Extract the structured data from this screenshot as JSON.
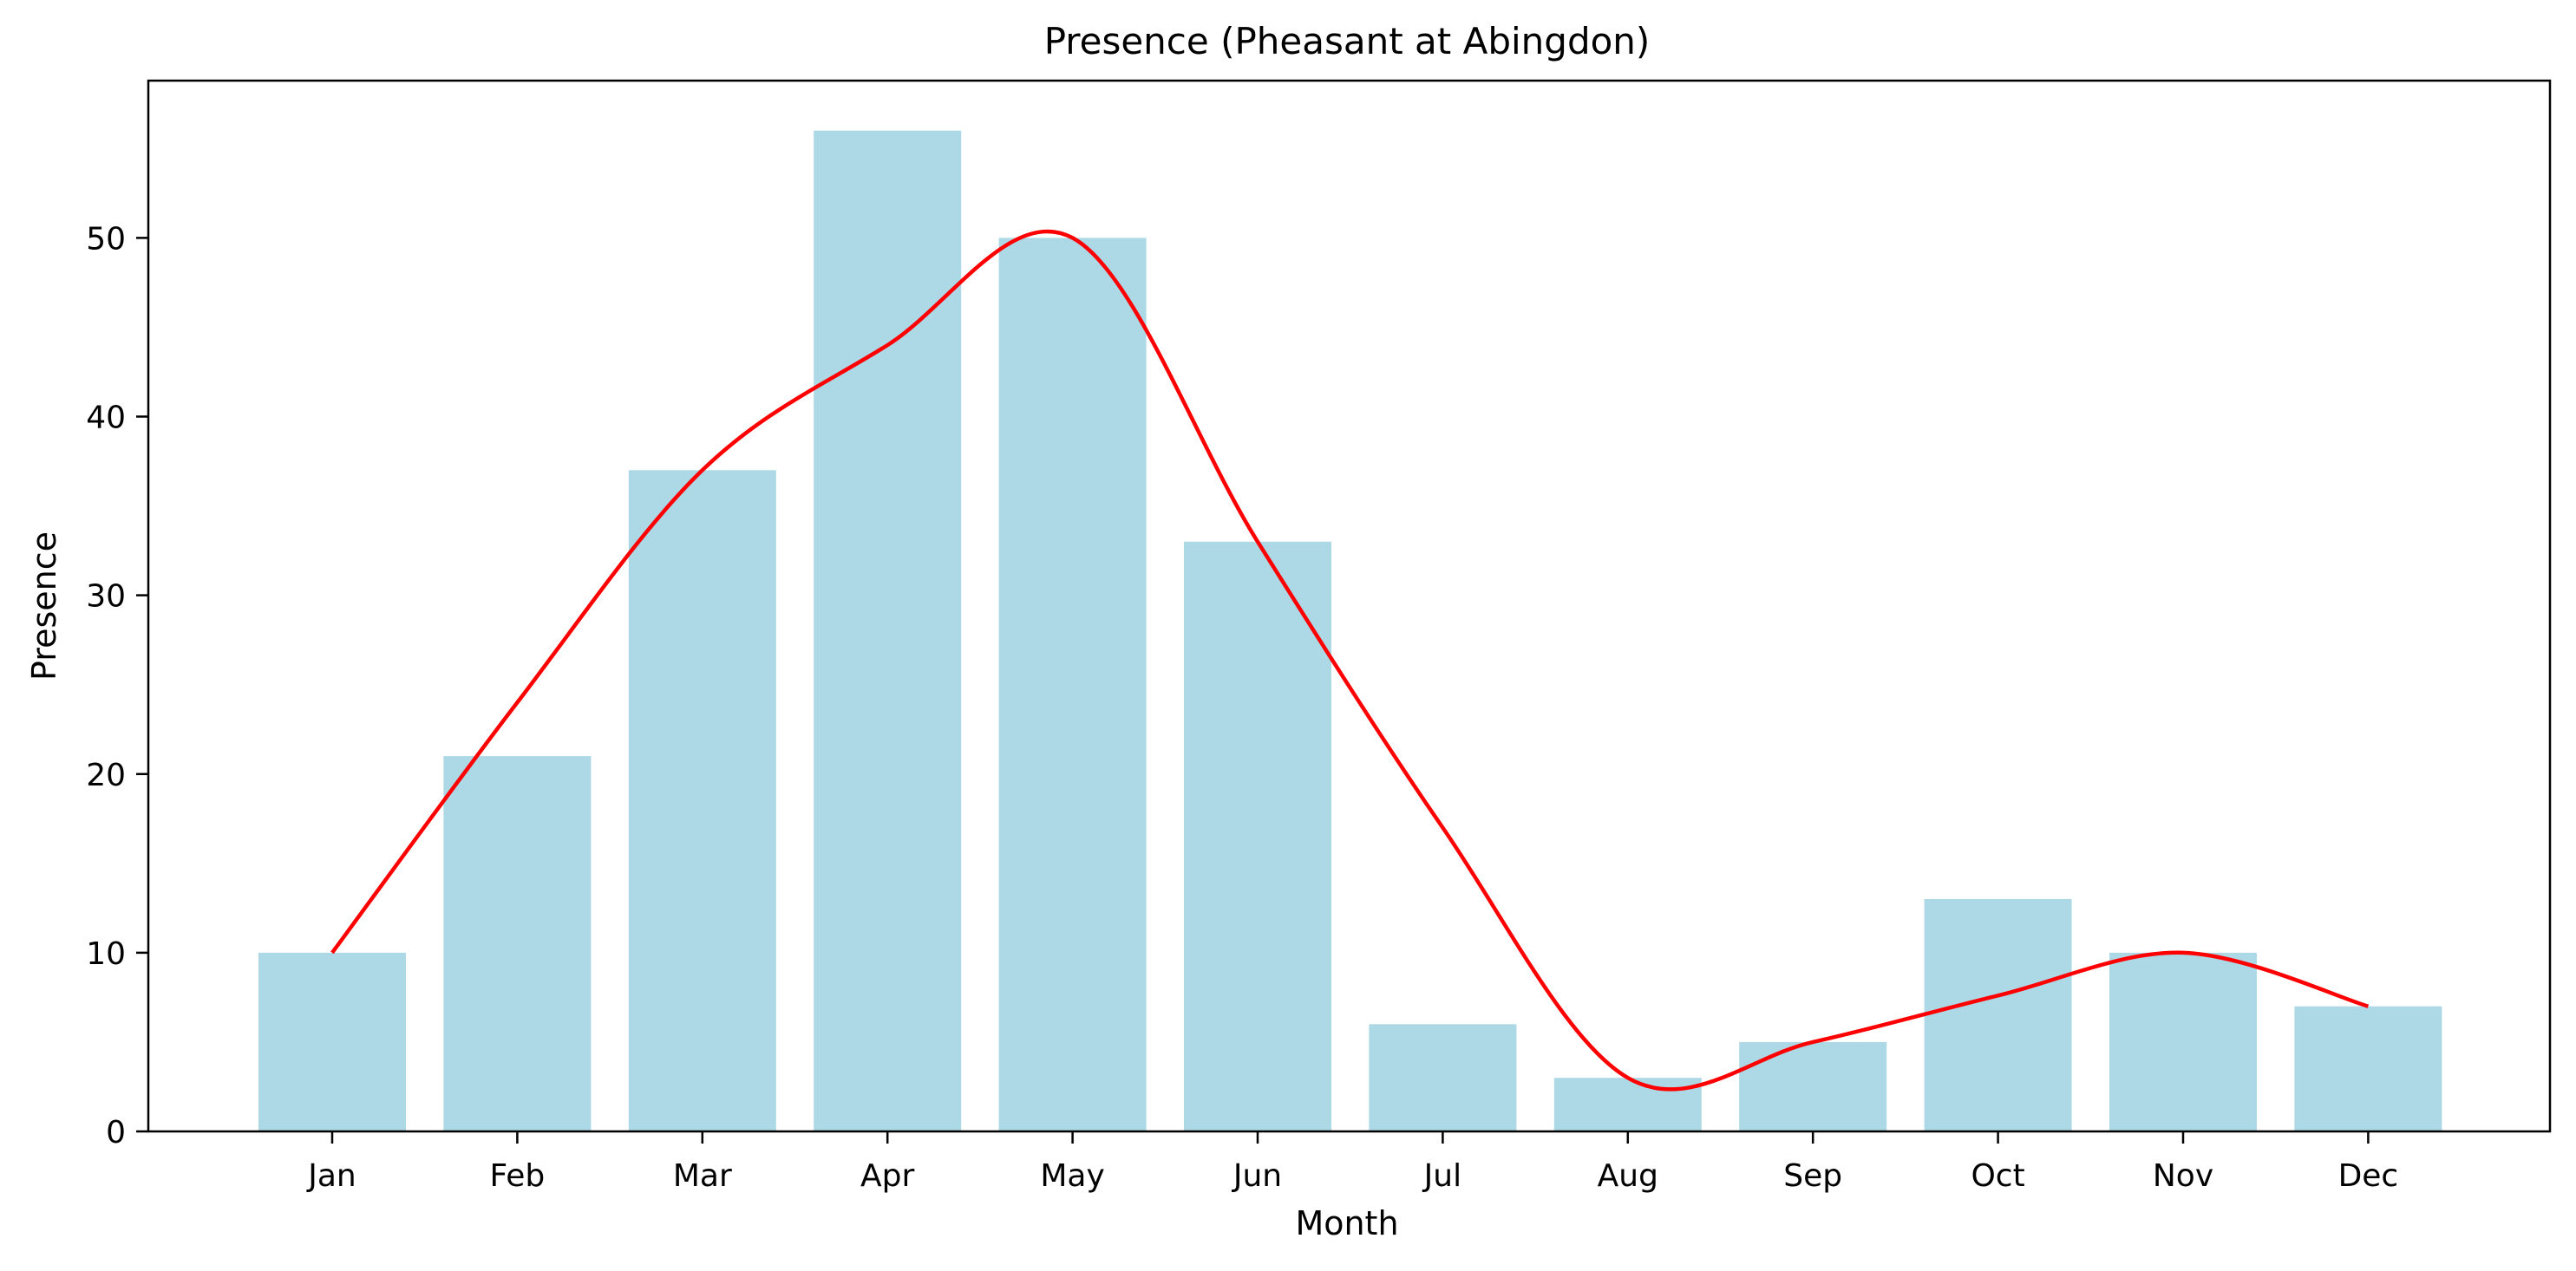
{
  "chart_data": {
    "type": "bar",
    "title": "Presence (Pheasant at Abingdon)",
    "xlabel": "Month",
    "ylabel": "Presence",
    "categories": [
      "Jan",
      "Feb",
      "Mar",
      "Apr",
      "May",
      "Jun",
      "Jul",
      "Aug",
      "Sep",
      "Oct",
      "Nov",
      "Dec"
    ],
    "values": [
      10,
      21,
      37,
      56,
      50,
      33,
      6,
      3,
      5,
      13,
      10,
      7
    ],
    "ylim": [
      0,
      58.8
    ],
    "yticks": [
      0,
      10,
      20,
      30,
      40,
      50
    ],
    "grid": false,
    "legend": "none",
    "overlay": {
      "type": "line",
      "style": "smooth",
      "values": [
        10,
        24,
        37,
        44,
        50,
        33,
        17,
        3,
        5,
        7.6,
        10,
        7
      ]
    },
    "colors": {
      "bar": "#add8e6",
      "line": "#ff0000",
      "axis": "#000000"
    }
  }
}
